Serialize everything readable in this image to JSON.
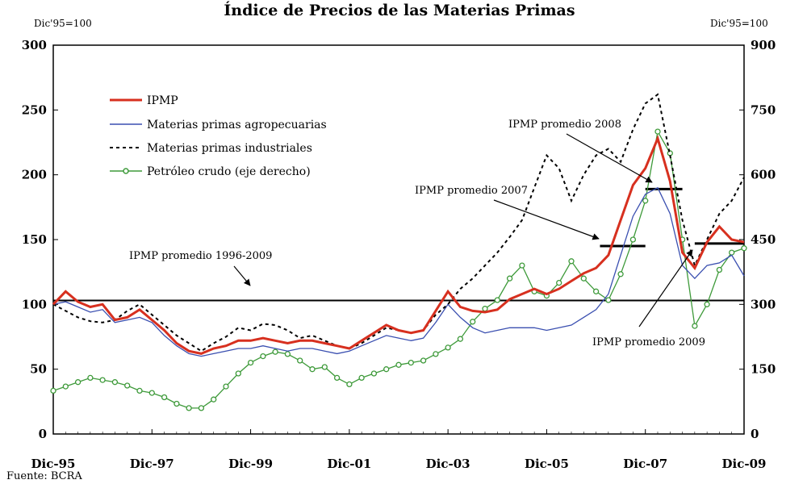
{
  "chart_data": {
    "type": "line",
    "title": "Índice de Precios de las Materias Primas",
    "left_unit": "Dic'95=100",
    "right_unit": "Dic'95=100",
    "source": "Fuente: BCRA",
    "x_ticks": [
      "Dic-95",
      "Dic-97",
      "Dic-99",
      "Dic-01",
      "Dic-03",
      "Dic-05",
      "Dic-07",
      "Dic-09"
    ],
    "xlim": [
      1995.92,
      2009.92
    ],
    "ylim_left": [
      0,
      300
    ],
    "ylim_right": [
      0,
      900
    ],
    "y_ticks_left": [
      "0",
      "50",
      "100",
      "150",
      "200",
      "250",
      "300"
    ],
    "y_ticks_right": [
      "0",
      "150",
      "300",
      "450",
      "600",
      "750",
      "900"
    ],
    "legend_position": "top-left",
    "series": [
      {
        "name": "IPMP",
        "axis": "left",
        "color": "#d7301f",
        "style": "solid-thick",
        "x": [
          1995.92,
          1996.17,
          1996.42,
          1996.67,
          1996.92,
          1997.17,
          1997.42,
          1997.67,
          1997.92,
          1998.17,
          1998.42,
          1998.67,
          1998.92,
          1999.17,
          1999.42,
          1999.67,
          1999.92,
          2000.17,
          2000.42,
          2000.67,
          2000.92,
          2001.17,
          2001.42,
          2001.67,
          2001.92,
          2002.17,
          2002.42,
          2002.67,
          2002.92,
          2003.17,
          2003.42,
          2003.67,
          2003.92,
          2004.17,
          2004.42,
          2004.67,
          2004.92,
          2005.17,
          2005.42,
          2005.67,
          2005.92,
          2006.17,
          2006.42,
          2006.67,
          2006.92,
          2007.17,
          2007.42,
          2007.67,
          2007.92,
          2008.17,
          2008.42,
          2008.67,
          2008.92,
          2009.17,
          2009.42,
          2009.67,
          2009.92
        ],
        "values": [
          100,
          110,
          102,
          98,
          100,
          88,
          90,
          96,
          88,
          80,
          70,
          64,
          62,
          66,
          68,
          72,
          72,
          74,
          72,
          70,
          72,
          72,
          70,
          68,
          66,
          72,
          78,
          84,
          80,
          78,
          80,
          95,
          110,
          98,
          95,
          94,
          96,
          104,
          108,
          112,
          108,
          112,
          118,
          124,
          128,
          138,
          165,
          192,
          205,
          228,
          195,
          140,
          128,
          148,
          160,
          150,
          148
        ]
      },
      {
        "name": "Materias primas agropecuarias",
        "axis": "left",
        "color": "#3a4fb0",
        "style": "solid-thin",
        "x": [
          1995.92,
          1996.17,
          1996.42,
          1996.67,
          1996.92,
          1997.17,
          1997.42,
          1997.67,
          1997.92,
          1998.17,
          1998.42,
          1998.67,
          1998.92,
          1999.17,
          1999.42,
          1999.67,
          1999.92,
          2000.17,
          2000.42,
          2000.67,
          2000.92,
          2001.17,
          2001.42,
          2001.67,
          2001.92,
          2002.17,
          2002.42,
          2002.67,
          2002.92,
          2003.17,
          2003.42,
          2003.67,
          2003.92,
          2004.17,
          2004.42,
          2004.67,
          2004.92,
          2005.17,
          2005.42,
          2005.67,
          2005.92,
          2006.17,
          2006.42,
          2006.67,
          2006.92,
          2007.17,
          2007.42,
          2007.67,
          2007.92,
          2008.17,
          2008.42,
          2008.67,
          2008.92,
          2009.17,
          2009.42,
          2009.67,
          2009.92
        ],
        "values": [
          100,
          102,
          98,
          94,
          96,
          86,
          88,
          90,
          86,
          76,
          68,
          62,
          60,
          62,
          64,
          66,
          66,
          68,
          66,
          64,
          66,
          66,
          64,
          62,
          64,
          68,
          72,
          76,
          74,
          72,
          74,
          86,
          100,
          90,
          82,
          78,
          80,
          82,
          82,
          82,
          80,
          82,
          84,
          90,
          96,
          108,
          138,
          168,
          185,
          190,
          170,
          130,
          120,
          130,
          132,
          138,
          122
        ]
      },
      {
        "name": "Materias primas industriales",
        "axis": "left",
        "color": "#000000",
        "style": "dashed",
        "x": [
          1995.92,
          1996.17,
          1996.42,
          1996.67,
          1996.92,
          1997.17,
          1997.42,
          1997.67,
          1997.92,
          1998.17,
          1998.42,
          1998.67,
          1998.92,
          1999.17,
          1999.42,
          1999.67,
          1999.92,
          2000.17,
          2000.42,
          2000.67,
          2000.92,
          2001.17,
          2001.42,
          2001.67,
          2001.92,
          2002.17,
          2002.42,
          2002.67,
          2002.92,
          2003.17,
          2003.42,
          2003.67,
          2003.92,
          2004.17,
          2004.42,
          2004.67,
          2004.92,
          2005.17,
          2005.42,
          2005.67,
          2005.92,
          2006.17,
          2006.42,
          2006.67,
          2006.92,
          2007.17,
          2007.42,
          2007.67,
          2007.92,
          2008.17,
          2008.42,
          2008.67,
          2008.92,
          2009.17,
          2009.42,
          2009.67,
          2009.92
        ],
        "values": [
          100,
          95,
          90,
          87,
          86,
          88,
          95,
          100,
          92,
          84,
          76,
          70,
          64,
          70,
          75,
          82,
          80,
          85,
          84,
          80,
          74,
          76,
          72,
          68,
          66,
          70,
          76,
          82,
          80,
          78,
          80,
          92,
          100,
          112,
          120,
          130,
          140,
          152,
          165,
          190,
          215,
          205,
          180,
          200,
          215,
          220,
          210,
          235,
          255,
          262,
          215,
          165,
          130,
          150,
          170,
          180,
          198
        ]
      },
      {
        "name": "Petróleo crudo (eje derecho)",
        "axis": "right",
        "color": "#3e9a3a",
        "style": "solid-markers",
        "x": [
          1995.92,
          1996.17,
          1996.42,
          1996.67,
          1996.92,
          1997.17,
          1997.42,
          1997.67,
          1997.92,
          1998.17,
          1998.42,
          1998.67,
          1998.92,
          1999.17,
          1999.42,
          1999.67,
          1999.92,
          2000.17,
          2000.42,
          2000.67,
          2000.92,
          2001.17,
          2001.42,
          2001.67,
          2001.92,
          2002.17,
          2002.42,
          2002.67,
          2002.92,
          2003.17,
          2003.42,
          2003.67,
          2003.92,
          2004.17,
          2004.42,
          2004.67,
          2004.92,
          2005.17,
          2005.42,
          2005.67,
          2005.92,
          2006.17,
          2006.42,
          2006.67,
          2006.92,
          2007.17,
          2007.42,
          2007.67,
          2007.92,
          2008.17,
          2008.42,
          2008.67,
          2008.92,
          2009.17,
          2009.42,
          2009.67,
          2009.92
        ],
        "values": [
          100,
          110,
          120,
          130,
          125,
          120,
          112,
          100,
          95,
          85,
          70,
          60,
          60,
          80,
          110,
          140,
          165,
          180,
          190,
          185,
          170,
          150,
          155,
          130,
          115,
          130,
          140,
          150,
          160,
          165,
          170,
          185,
          200,
          220,
          260,
          290,
          310,
          360,
          390,
          330,
          320,
          350,
          400,
          360,
          330,
          310,
          370,
          450,
          540,
          700,
          650,
          450,
          250,
          300,
          380,
          420,
          430
        ]
      }
    ],
    "reference_lines": [
      {
        "label": "IPMP promedio 1996-2009",
        "y": 103,
        "x_range": [
          1995.92,
          2009.92
        ]
      },
      {
        "label": "IPMP promedio 2007",
        "y": 145,
        "x_range": [
          2007.0,
          2007.92
        ]
      },
      {
        "label": "IPMP promedio 2008",
        "y": 189,
        "x_range": [
          2007.92,
          2008.67
        ]
      },
      {
        "label": "IPMP promedio 2009",
        "y": 147,
        "x_range": [
          2008.92,
          2009.92
        ]
      }
    ]
  }
}
